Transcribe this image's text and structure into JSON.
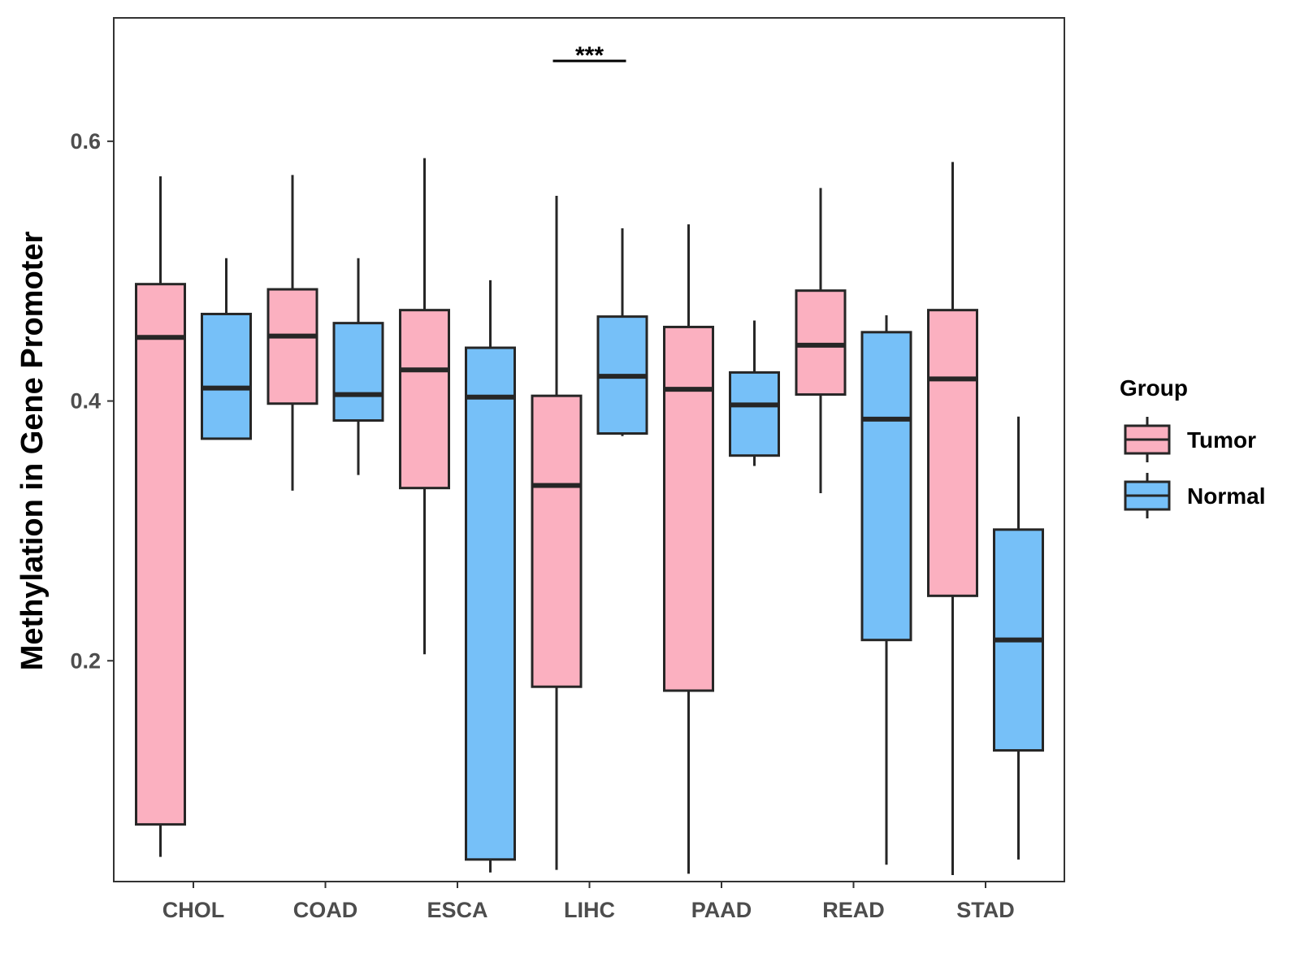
{
  "chart_data": {
    "type": "boxplot",
    "ylabel": "Methylation in Gene Promoter",
    "xlabel": "",
    "ylim": [
      0.03,
      0.695
    ],
    "yticks": [
      0.2,
      0.4,
      0.6
    ],
    "ytick_labels": [
      "0.2",
      "0.4",
      "0.6"
    ],
    "categories": [
      "CHOL",
      "COAD",
      "ESCA",
      "LIHC",
      "PAAD",
      "READ",
      "STAD"
    ],
    "legend": {
      "title": "Group",
      "position": "right",
      "entries": [
        {
          "name": "Tumor",
          "color": "#fbb0c0"
        },
        {
          "name": "Normal",
          "color": "#76c0f8"
        }
      ]
    },
    "series": [
      {
        "name": "Tumor",
        "color": "#fbb0c0",
        "boxes": [
          {
            "min": 0.049,
            "q1": 0.074,
            "median": 0.449,
            "q3": 0.49,
            "max": 0.573
          },
          {
            "min": 0.331,
            "q1": 0.398,
            "median": 0.45,
            "q3": 0.486,
            "max": 0.574
          },
          {
            "min": 0.205,
            "q1": 0.333,
            "median": 0.424,
            "q3": 0.47,
            "max": 0.587
          },
          {
            "min": 0.039,
            "q1": 0.18,
            "median": 0.335,
            "q3": 0.404,
            "max": 0.558
          },
          {
            "min": 0.036,
            "q1": 0.177,
            "median": 0.409,
            "q3": 0.457,
            "max": 0.536
          },
          {
            "min": 0.329,
            "q1": 0.405,
            "median": 0.443,
            "q3": 0.485,
            "max": 0.564
          },
          {
            "min": 0.035,
            "q1": 0.25,
            "median": 0.417,
            "q3": 0.47,
            "max": 0.584
          }
        ]
      },
      {
        "name": "Normal",
        "color": "#76c0f8",
        "boxes": [
          {
            "min": 0.371,
            "q1": 0.371,
            "median": 0.41,
            "q3": 0.467,
            "max": 0.51
          },
          {
            "min": 0.343,
            "q1": 0.385,
            "median": 0.405,
            "q3": 0.46,
            "max": 0.51
          },
          {
            "min": 0.037,
            "q1": 0.047,
            "median": 0.403,
            "q3": 0.441,
            "max": 0.493
          },
          {
            "min": 0.373,
            "q1": 0.375,
            "median": 0.419,
            "q3": 0.465,
            "max": 0.533
          },
          {
            "min": 0.35,
            "q1": 0.358,
            "median": 0.397,
            "q3": 0.422,
            "max": 0.462
          },
          {
            "min": 0.043,
            "q1": 0.216,
            "median": 0.386,
            "q3": 0.453,
            "max": 0.466
          },
          {
            "min": 0.047,
            "q1": 0.131,
            "median": 0.216,
            "q3": 0.301,
            "max": 0.388
          }
        ]
      }
    ],
    "annotations": [
      {
        "text": "***",
        "category": "LIHC",
        "type": "significance-bracket"
      }
    ]
  }
}
